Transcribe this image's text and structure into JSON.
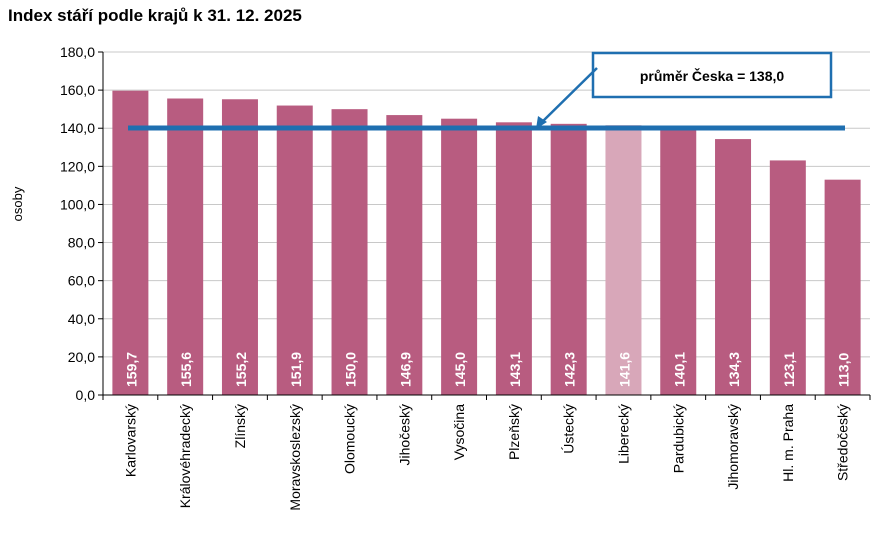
{
  "chart_data": {
    "type": "bar",
    "title": "Index stáří podle krajů k 31. 12. 2025",
    "ylabel": "osoby",
    "xlabel": "",
    "ylim": [
      0,
      180
    ],
    "yticks": [
      "0,0",
      "20,0",
      "40,0",
      "60,0",
      "80,0",
      "100,0",
      "120,0",
      "140,0",
      "160,0",
      "180,0"
    ],
    "grid": true,
    "categories": [
      "Karlovarský",
      "Královéhradecký",
      "Zlínský",
      "Moravskoslezský",
      "Olomoucký",
      "Jihočeský",
      "Vysočina",
      "Plzeňský",
      "Ústecký",
      "Liberecký",
      "Pardubický",
      "Jihomoravský",
      "Hl. m. Praha",
      "Středočeský"
    ],
    "values": [
      159.7,
      155.6,
      155.2,
      151.9,
      150.0,
      146.9,
      145.0,
      143.1,
      142.3,
      141.6,
      140.1,
      134.3,
      123.1,
      113.0
    ],
    "value_labels": [
      "159,7",
      "155,6",
      "155,2",
      "151,9",
      "150,0",
      "146,9",
      "145,0",
      "143,1",
      "142,3",
      "141,6",
      "140,1",
      "134,3",
      "123,1",
      "113,0"
    ],
    "highlight_index": 9,
    "average": {
      "value": 138.0,
      "label": "průměr Česka = 138,0"
    },
    "colors": {
      "bar": "#b85c80",
      "highlight": "#d8a7b9",
      "average_line": "#1f6fb0",
      "grid": "#c8c8c8"
    }
  }
}
